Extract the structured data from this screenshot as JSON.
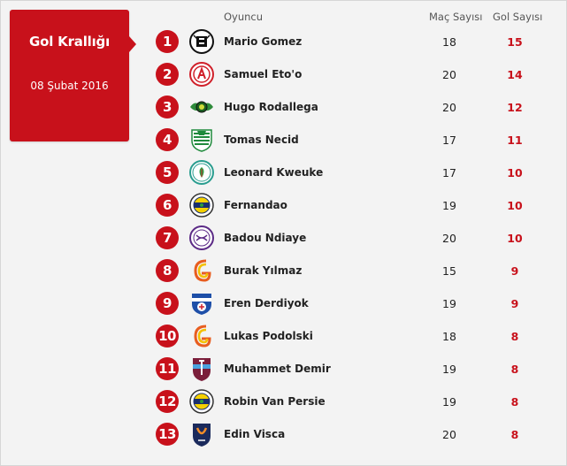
{
  "card": {
    "title": "Gol Krallığı",
    "date": "08 Şubat 2016",
    "color": "#c8111b"
  },
  "headers": {
    "player": "Oyuncu",
    "matches": "Maç Sayısı",
    "goals": "Gol Sayısı"
  },
  "players": [
    {
      "rank": "1",
      "name": "Mario Gomez",
      "matches": "18",
      "goals": "15",
      "team_icon": "besiktas-crest"
    },
    {
      "rank": "2",
      "name": "Samuel Eto'o",
      "matches": "20",
      "goals": "14",
      "team_icon": "antalyaspor-crest"
    },
    {
      "rank": "3",
      "name": "Hugo Rodallega",
      "matches": "20",
      "goals": "12",
      "team_icon": "akhisar-crest"
    },
    {
      "rank": "4",
      "name": "Tomas Necid",
      "matches": "17",
      "goals": "11",
      "team_icon": "bursaspor-crest"
    },
    {
      "rank": "5",
      "name": "Leonard Kweuke",
      "matches": "17",
      "goals": "10",
      "team_icon": "rizespor-crest"
    },
    {
      "rank": "6",
      "name": "Fernandao",
      "matches": "19",
      "goals": "10",
      "team_icon": "fenerbahce-crest"
    },
    {
      "rank": "7",
      "name": "Badou Ndiaye",
      "matches": "20",
      "goals": "10",
      "team_icon": "osmanlispor-crest"
    },
    {
      "rank": "8",
      "name": "Burak Yılmaz",
      "matches": "15",
      "goals": "9",
      "team_icon": "galatasaray-crest"
    },
    {
      "rank": "9",
      "name": "Eren Derdiyok",
      "matches": "19",
      "goals": "9",
      "team_icon": "kasimpasa-crest"
    },
    {
      "rank": "10",
      "name": "Lukas Podolski",
      "matches": "18",
      "goals": "8",
      "team_icon": "galatasaray-crest"
    },
    {
      "rank": "11",
      "name": "Muhammet Demir",
      "matches": "19",
      "goals": "8",
      "team_icon": "trabzonspor-crest"
    },
    {
      "rank": "12",
      "name": "Robin Van Persie",
      "matches": "19",
      "goals": "8",
      "team_icon": "fenerbahce-crest"
    },
    {
      "rank": "13",
      "name": "Edin Visca",
      "matches": "20",
      "goals": "8",
      "team_icon": "basaksehir-crest"
    }
  ]
}
